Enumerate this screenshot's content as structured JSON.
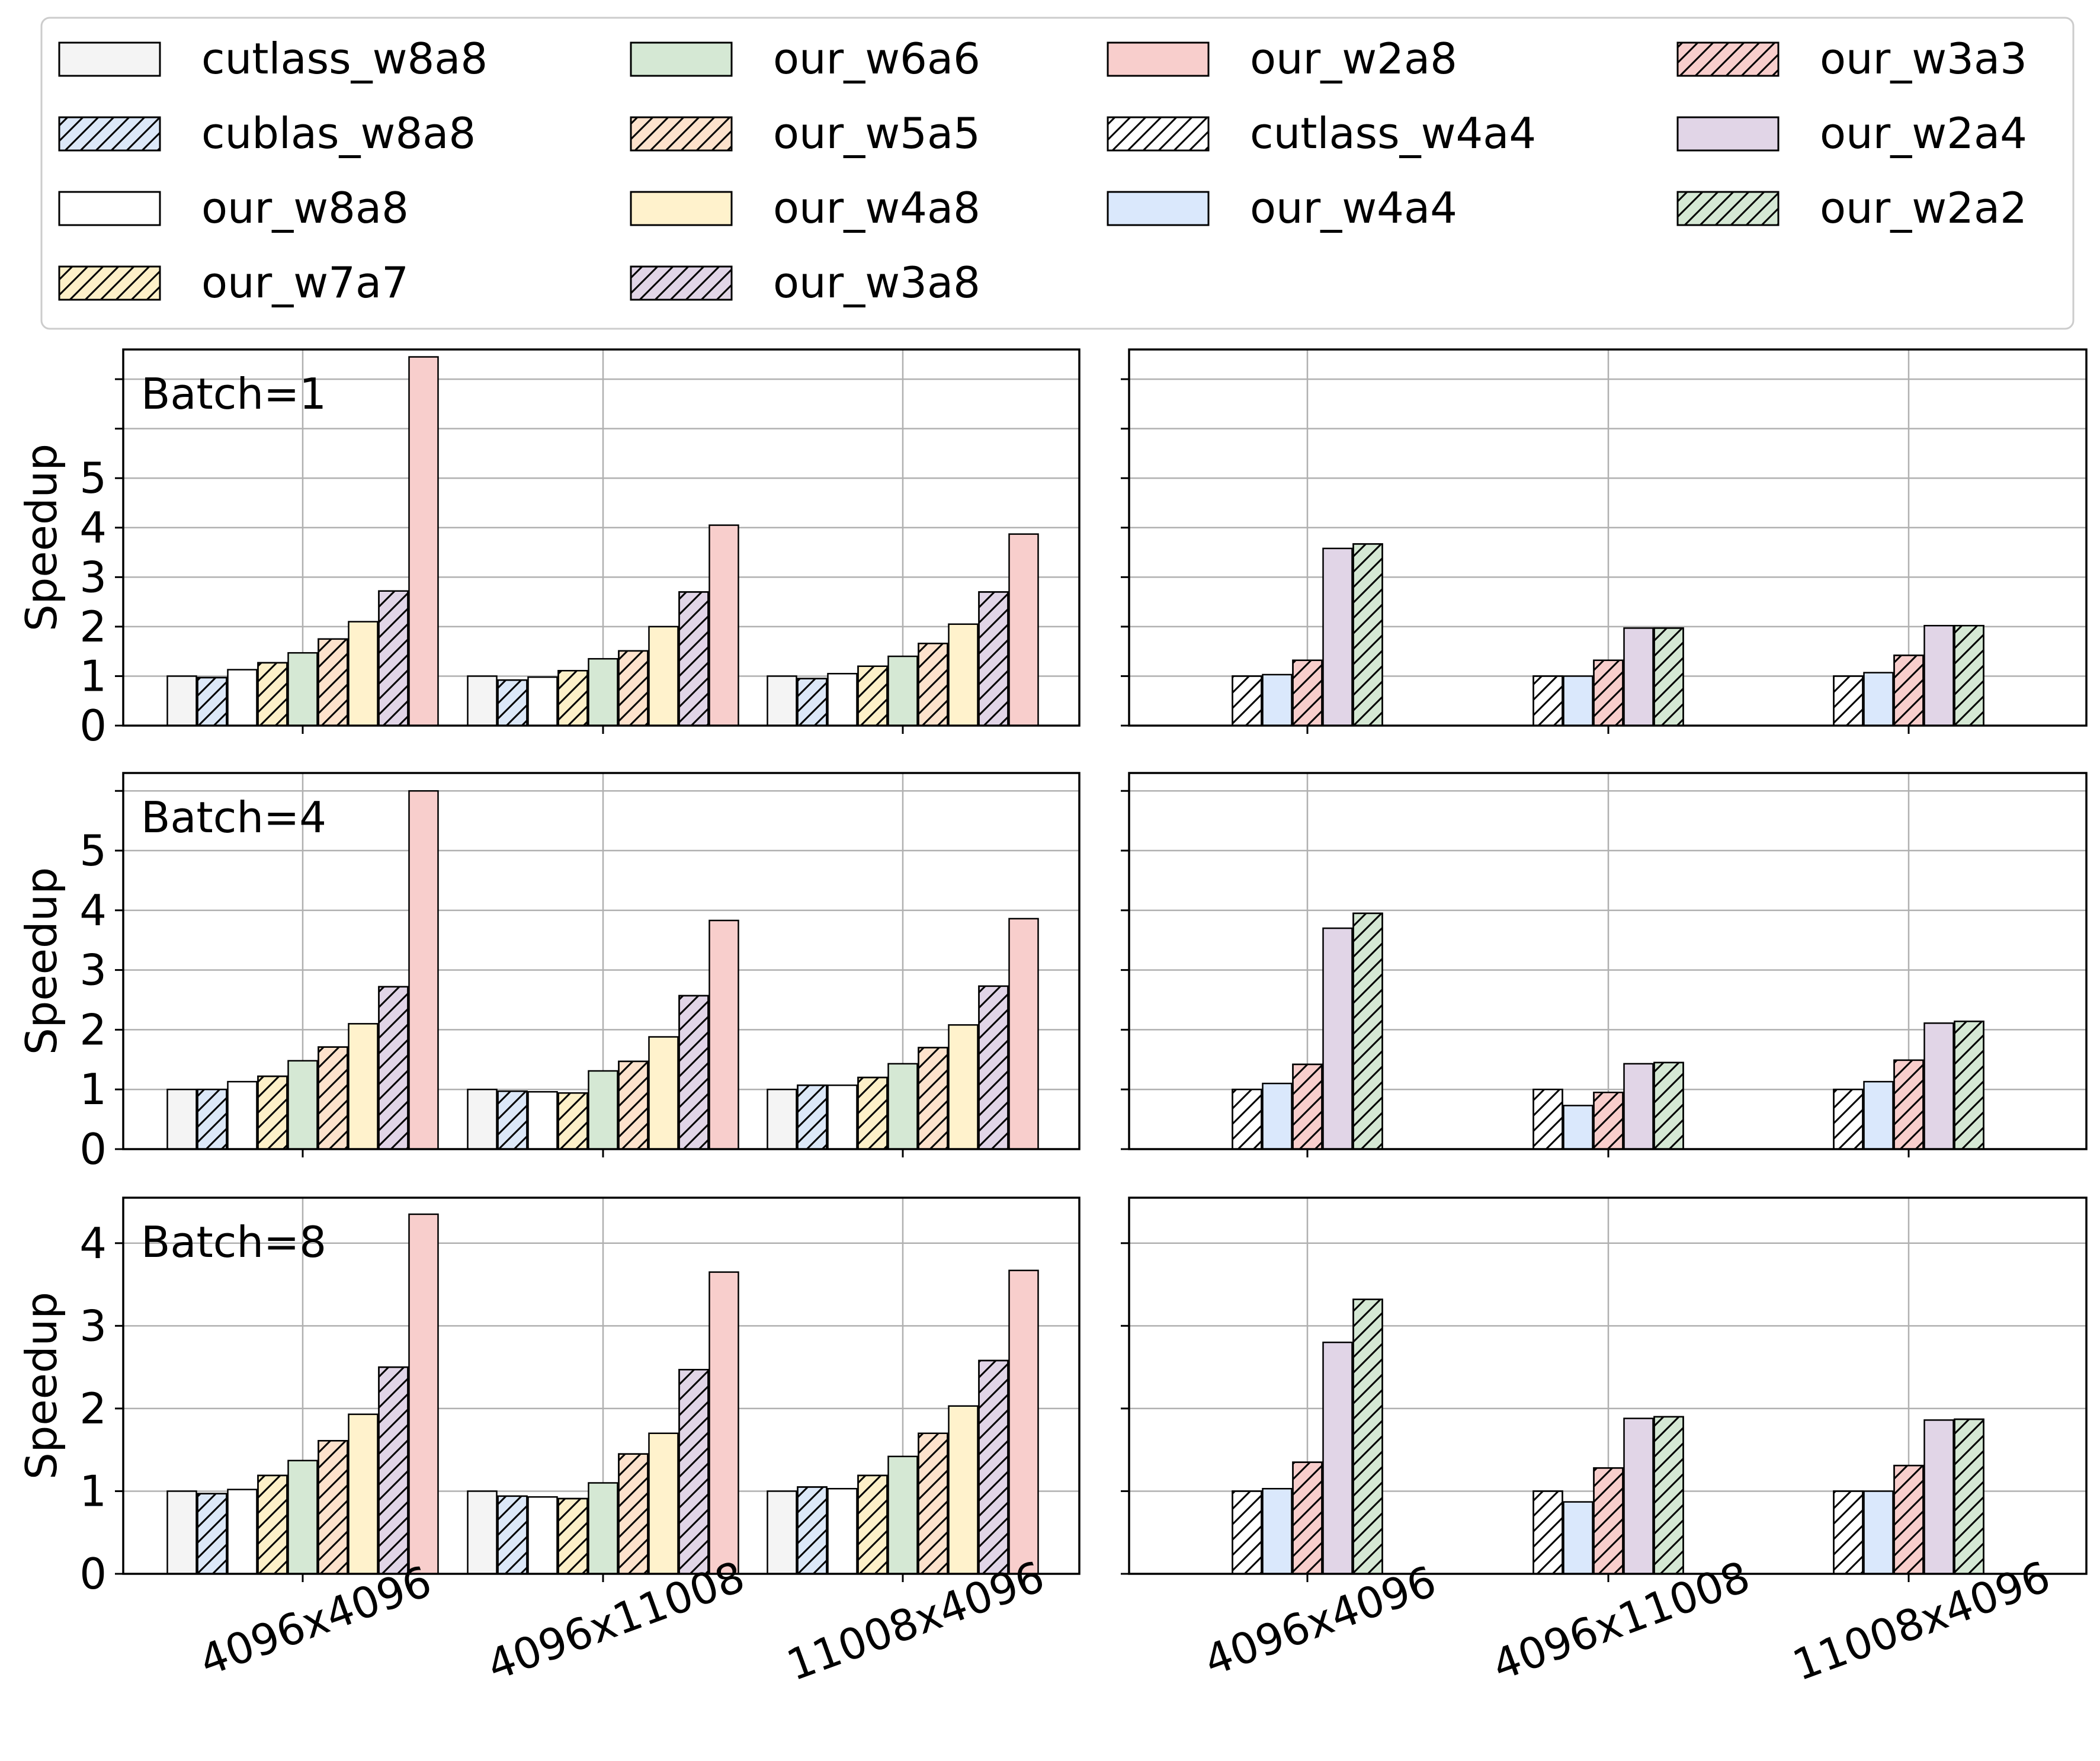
{
  "figure": {
    "legend": {
      "columns": [
        [
          "cutlass_w8a8",
          "cublas_w8a8",
          "our_w8a8",
          "our_w7a7"
        ],
        [
          "our_w6a6",
          "our_w5a5",
          "our_w4a8",
          "our_w3a8"
        ],
        [
          "our_w2a8",
          "cutlass_w4a4",
          "our_w4a4"
        ],
        [
          "our_w3a3",
          "our_w2a4",
          "our_w2a2"
        ]
      ]
    }
  },
  "series_styles": {
    "cutlass_w8a8": {
      "color": "#f4f4f4",
      "hatch": false
    },
    "cublas_w8a8": {
      "color": "#dce8f8",
      "hatch": true
    },
    "our_w8a8": {
      "color": "#ffffff",
      "hatch": false
    },
    "our_w7a7": {
      "color": "#fdf0c8",
      "hatch": true
    },
    "our_w6a6": {
      "color": "#d5e8d4",
      "hatch": false
    },
    "our_w5a5": {
      "color": "#fde2cc",
      "hatch": true
    },
    "our_w4a8": {
      "color": "#fff2cc",
      "hatch": false
    },
    "our_w3a8": {
      "color": "#e1d5e7",
      "hatch": true
    },
    "our_w2a8": {
      "color": "#f8cecc",
      "hatch": false
    },
    "cutlass_w4a4": {
      "color": "#ffffff",
      "hatch": true
    },
    "our_w4a4": {
      "color": "#dae8fc",
      "hatch": false
    },
    "our_w3a3": {
      "color": "#f8cecc",
      "hatch": true
    },
    "our_w2a4": {
      "color": "#e1d5e7",
      "hatch": false
    },
    "our_w2a2": {
      "color": "#d5e8d4",
      "hatch": true
    }
  },
  "chart_data": [
    {
      "type": "bar",
      "panel": "left",
      "row": 0,
      "annotation": "Batch=1",
      "ylabel": "Speedup",
      "ylim": [
        0,
        7.6
      ],
      "yticks": [
        "0",
        "1",
        "2",
        "3",
        "4",
        "5"
      ],
      "categories": [
        "4096x4096",
        "4096x11008",
        "11008x4096"
      ],
      "grid": true,
      "series": [
        {
          "name": "cutlass_w8a8",
          "values": [
            1.0,
            1.0,
            1.0
          ]
        },
        {
          "name": "cublas_w8a8",
          "values": [
            0.97,
            0.92,
            0.95
          ]
        },
        {
          "name": "our_w8a8",
          "values": [
            1.13,
            0.98,
            1.05
          ]
        },
        {
          "name": "our_w7a7",
          "values": [
            1.27,
            1.11,
            1.2
          ]
        },
        {
          "name": "our_w6a6",
          "values": [
            1.47,
            1.35,
            1.4
          ]
        },
        {
          "name": "our_w5a5",
          "values": [
            1.75,
            1.51,
            1.66
          ]
        },
        {
          "name": "our_w4a8",
          "values": [
            2.1,
            2.0,
            2.05
          ]
        },
        {
          "name": "our_w3a8",
          "values": [
            2.72,
            2.7,
            2.7
          ]
        },
        {
          "name": "our_w2a8",
          "values": [
            7.45,
            4.05,
            3.87
          ]
        }
      ]
    },
    {
      "type": "bar",
      "panel": "right",
      "row": 0,
      "ylim": [
        0,
        7.6
      ],
      "categories": [
        "4096x4096",
        "4096x11008",
        "11008x4096"
      ],
      "grid": true,
      "series": [
        {
          "name": "cutlass_w4a4",
          "values": [
            1.0,
            1.0,
            1.0
          ]
        },
        {
          "name": "our_w4a4",
          "values": [
            1.03,
            1.0,
            1.07
          ]
        },
        {
          "name": "our_w3a3",
          "values": [
            1.32,
            1.32,
            1.42
          ]
        },
        {
          "name": "our_w2a4",
          "values": [
            3.58,
            1.97,
            2.02
          ]
        },
        {
          "name": "our_w2a2",
          "values": [
            3.67,
            1.97,
            2.02
          ]
        }
      ]
    },
    {
      "type": "bar",
      "panel": "left",
      "row": 1,
      "annotation": "Batch=4",
      "ylabel": "Speedup",
      "ylim": [
        0,
        6.3
      ],
      "yticks": [
        "0",
        "1",
        "2",
        "3",
        "4",
        "5"
      ],
      "categories": [
        "4096x4096",
        "4096x11008",
        "11008x4096"
      ],
      "grid": true,
      "series": [
        {
          "name": "cutlass_w8a8",
          "values": [
            1.0,
            1.0,
            1.0
          ]
        },
        {
          "name": "cublas_w8a8",
          "values": [
            1.0,
            0.97,
            1.07
          ]
        },
        {
          "name": "our_w8a8",
          "values": [
            1.13,
            0.96,
            1.07
          ]
        },
        {
          "name": "our_w7a7",
          "values": [
            1.22,
            0.94,
            1.2
          ]
        },
        {
          "name": "our_w6a6",
          "values": [
            1.48,
            1.31,
            1.43
          ]
        },
        {
          "name": "our_w5a5",
          "values": [
            1.71,
            1.47,
            1.7
          ]
        },
        {
          "name": "our_w4a8",
          "values": [
            2.1,
            1.88,
            2.08
          ]
        },
        {
          "name": "our_w3a8",
          "values": [
            2.72,
            2.57,
            2.73
          ]
        },
        {
          "name": "our_w2a8",
          "values": [
            6.0,
            3.83,
            3.86
          ]
        }
      ]
    },
    {
      "type": "bar",
      "panel": "right",
      "row": 1,
      "ylim": [
        0,
        6.3
      ],
      "categories": [
        "4096x4096",
        "4096x11008",
        "11008x4096"
      ],
      "grid": true,
      "series": [
        {
          "name": "cutlass_w4a4",
          "values": [
            1.0,
            1.0,
            1.0
          ]
        },
        {
          "name": "our_w4a4",
          "values": [
            1.1,
            0.73,
            1.13
          ]
        },
        {
          "name": "our_w3a3",
          "values": [
            1.42,
            0.95,
            1.49
          ]
        },
        {
          "name": "our_w2a4",
          "values": [
            3.7,
            1.43,
            2.11
          ]
        },
        {
          "name": "our_w2a2",
          "values": [
            3.95,
            1.45,
            2.14
          ]
        }
      ]
    },
    {
      "type": "bar",
      "panel": "left",
      "row": 2,
      "annotation": "Batch=8",
      "ylabel": "Speedup",
      "ylim": [
        0,
        4.55
      ],
      "yticks": [
        "0",
        "1",
        "2",
        "3",
        "4"
      ],
      "categories": [
        "4096x4096",
        "4096x11008",
        "11008x4096"
      ],
      "grid": true,
      "series": [
        {
          "name": "cutlass_w8a8",
          "values": [
            1.0,
            1.0,
            1.0
          ]
        },
        {
          "name": "cublas_w8a8",
          "values": [
            0.97,
            0.94,
            1.05
          ]
        },
        {
          "name": "our_w8a8",
          "values": [
            1.02,
            0.93,
            1.03
          ]
        },
        {
          "name": "our_w7a7",
          "values": [
            1.19,
            0.91,
            1.19
          ]
        },
        {
          "name": "our_w6a6",
          "values": [
            1.37,
            1.1,
            1.42
          ]
        },
        {
          "name": "our_w5a5",
          "values": [
            1.61,
            1.45,
            1.7
          ]
        },
        {
          "name": "our_w4a8",
          "values": [
            1.93,
            1.7,
            2.03
          ]
        },
        {
          "name": "our_w3a8",
          "values": [
            2.5,
            2.47,
            2.58
          ]
        },
        {
          "name": "our_w2a8",
          "values": [
            4.35,
            3.65,
            3.67
          ]
        }
      ]
    },
    {
      "type": "bar",
      "panel": "right",
      "row": 2,
      "ylim": [
        0,
        4.55
      ],
      "categories": [
        "4096x4096",
        "4096x11008",
        "11008x4096"
      ],
      "grid": true,
      "series": [
        {
          "name": "cutlass_w4a4",
          "values": [
            1.0,
            1.0,
            1.0
          ]
        },
        {
          "name": "our_w4a4",
          "values": [
            1.03,
            0.87,
            1.0
          ]
        },
        {
          "name": "our_w3a3",
          "values": [
            1.35,
            1.28,
            1.31
          ]
        },
        {
          "name": "our_w2a4",
          "values": [
            2.8,
            1.88,
            1.86
          ]
        },
        {
          "name": "our_w2a2",
          "values": [
            3.32,
            1.9,
            1.87
          ]
        }
      ]
    }
  ]
}
